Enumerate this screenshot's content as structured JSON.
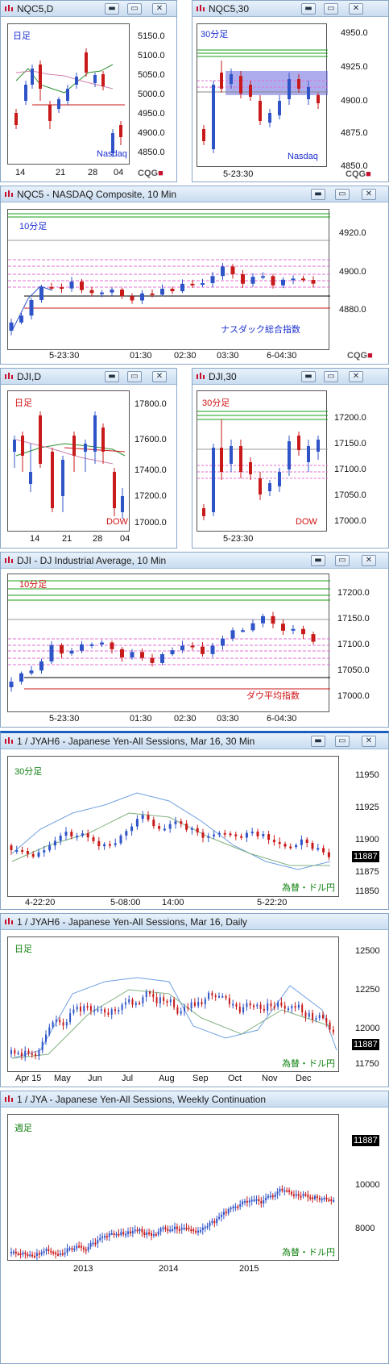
{
  "window_buttons": {
    "minimize": "▬",
    "restore": "▭",
    "close": "✕"
  },
  "brand": {
    "left": "CQG",
    "right": "■"
  },
  "panels": {
    "nqc5_d": {
      "title": "NQC5,D",
      "tag": "日足",
      "sub": "Nasdaq",
      "y_ticks": [
        "5150.0",
        "5100.0",
        "5050.0",
        "5000.0",
        "4950.0",
        "4900.0",
        "4850.0"
      ],
      "x_ticks": [
        "14",
        "21",
        "28",
        "04"
      ]
    },
    "nqc5_30": {
      "title": "NQC5,30",
      "tag": "30分足",
      "sub": "Nasdaq",
      "y_ticks": [
        "4950.0",
        "4925.0",
        "4900.0",
        "4875.0",
        "4850.0"
      ],
      "x_ticks": [
        "5-23:30"
      ]
    },
    "nqc5_10": {
      "title": "NQC5 - NASDAQ Composite, 10 Min",
      "tag": "10分足",
      "sub": "ナスダック総合指数",
      "y_ticks": [
        "4920.0",
        "4900.0",
        "4880.0"
      ],
      "x_ticks": [
        "5-23:30",
        "01:30",
        "02:30",
        "03:30",
        "6-04:30"
      ]
    },
    "dji_d": {
      "title": "DJI,D",
      "tag": "日足",
      "sub": "DOW",
      "y_ticks": [
        "17800.0",
        "17600.0",
        "17400.0",
        "17200.0",
        "17000.0"
      ],
      "x_ticks": [
        "14",
        "21",
        "28",
        "04"
      ]
    },
    "dji_30": {
      "title": "DJI,30",
      "tag": "30分足",
      "sub": "DOW",
      "y_ticks": [
        "17200.0",
        "17150.0",
        "17100.0",
        "17050.0",
        "17000.0"
      ],
      "x_ticks": [
        "5-23:30"
      ]
    },
    "dji_10": {
      "title": "DJI - DJ Industrial Average, 10 Min",
      "tag": "10分足",
      "sub": "ダウ平均指数",
      "y_ticks": [
        "17200.0",
        "17150.0",
        "17100.0",
        "17050.0",
        "17000.0"
      ],
      "x_ticks": [
        "5-23:30",
        "01:30",
        "02:30",
        "03:30",
        "6-04:30"
      ]
    },
    "jyah6_30": {
      "title": "1 / JYAH6 - Japanese Yen-All Sessions, Mar 16, 30 Min",
      "tag": "30分足",
      "sub": "為替・ドル円",
      "last": "11887",
      "y_ticks": [
        "11950",
        "11925",
        "11900",
        "11875",
        "11850"
      ],
      "x_ticks": [
        "4-22:20",
        "5-08:00",
        "14:00",
        "5-22:20"
      ]
    },
    "jyah6_d": {
      "title": "1 / JYAH6 - Japanese Yen-All Sessions, Mar 16, Daily",
      "tag": "日足",
      "sub": "為替・ドル円",
      "last": "11887",
      "y_ticks": [
        "12500",
        "12250",
        "12000",
        "11750"
      ],
      "x_ticks": [
        "Apr 15",
        "May",
        "Jun",
        "Jul",
        "Aug",
        "Sep",
        "Oct",
        "Nov",
        "Dec"
      ]
    },
    "jya_w": {
      "title": "1 / JYA - Japanese Yen-All Sessions, Weekly Continuation",
      "tag": "週足",
      "sub": "為替・ドル円",
      "last": "11887",
      "y_ticks": [
        "10000",
        "8000"
      ],
      "x_ticks": [
        "2013",
        "2014",
        "2015"
      ]
    }
  },
  "colors": {
    "up": "#2f54c8",
    "down": "#c81a1a",
    "green": "#16a016",
    "pink": "#e070d0",
    "tag_blue": "#1a2fd0",
    "tag_red": "#d01010",
    "tag_green": "#108010"
  }
}
